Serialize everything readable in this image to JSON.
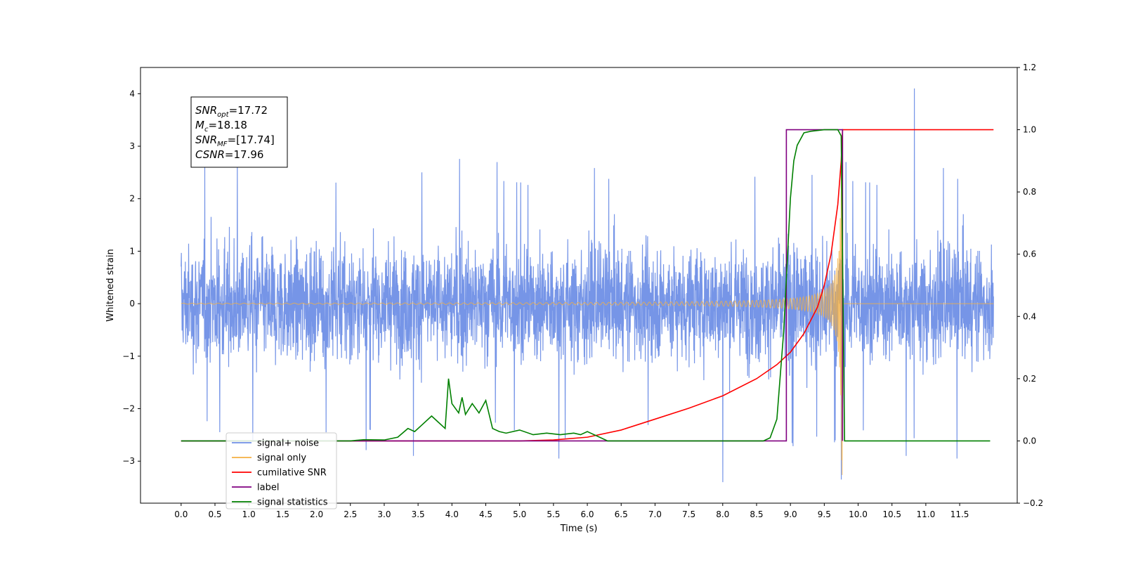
{
  "chart_data": {
    "type": "line",
    "xlabel": "Time (s)",
    "ylabel": "Whitened strain",
    "xlim": [
      -0.6,
      12.35
    ],
    "ylim": [
      -3.8,
      4.5
    ],
    "y2lim": [
      -0.2,
      1.2
    ],
    "grid": false,
    "x_ticks": [
      "0.0",
      "0.5",
      "1.0",
      "1.5",
      "2.0",
      "2.5",
      "3.0",
      "3.5",
      "4.0",
      "4.5",
      "5.0",
      "5.5",
      "6.0",
      "6.5",
      "7.0",
      "7.5",
      "8.0",
      "8.5",
      "9.0",
      "9.5",
      "10.0",
      "10.5",
      "11.0",
      "11.5"
    ],
    "y_ticks": [
      "−3",
      "−2",
      "−1",
      "0",
      "1",
      "2",
      "3",
      "4"
    ],
    "y2_ticks": [
      "−0.2",
      "0.0",
      "0.2",
      "0.4",
      "0.6",
      "0.8",
      "1.0",
      "1.2"
    ],
    "legend_position": "lower-left",
    "annotation": {
      "lines": [
        {
          "base": "SNR",
          "sub": "opt",
          "rest": "=17.72"
        },
        {
          "base": "M",
          "sub": "c",
          "rest": "=18.18"
        },
        {
          "base": "SNR",
          "sub": "MF",
          "rest": "=[17.74]"
        },
        {
          "base": "CSNR",
          "sub": "",
          "rest": "=17.96"
        }
      ]
    },
    "series": [
      {
        "name": "signal+ noise",
        "axis": "left",
        "color": "#6f8fe6",
        "x_range": [
          0,
          12
        ],
        "envelope": {
          "typical_abs": 1.8,
          "peak_max": 4.1,
          "peak_min": -3.4
        }
      },
      {
        "name": "signal only",
        "axis": "left",
        "color": "#f5b042",
        "x_range": [
          0,
          12
        ],
        "chirp_end": 9.77,
        "peak_amplitude": 3.3
      },
      {
        "name": "cumilative SNR",
        "axis": "right",
        "color": "#ff0000",
        "x": [
          0,
          5.0,
          5.5,
          6.0,
          6.5,
          7.0,
          7.5,
          8.0,
          8.5,
          8.8,
          9.0,
          9.2,
          9.4,
          9.5,
          9.6,
          9.7,
          9.75,
          9.77,
          12.0
        ],
        "y": [
          0,
          0,
          0.003,
          0.012,
          0.035,
          0.07,
          0.105,
          0.145,
          0.2,
          0.245,
          0.285,
          0.345,
          0.43,
          0.5,
          0.6,
          0.76,
          0.9,
          1.0,
          1.0
        ]
      },
      {
        "name": "label",
        "axis": "right",
        "color": "#800080",
        "x": [
          0,
          8.94,
          8.94,
          9.77,
          9.77,
          9.77
        ],
        "y": [
          0,
          0,
          1.0,
          1.0,
          0,
          0
        ]
      },
      {
        "name": "signal statistics",
        "axis": "right",
        "color": "#008000",
        "x": [
          0,
          2.5,
          2.7,
          3.0,
          3.2,
          3.35,
          3.45,
          3.55,
          3.7,
          3.8,
          3.9,
          3.95,
          4.0,
          4.1,
          4.15,
          4.2,
          4.3,
          4.4,
          4.5,
          4.6,
          4.7,
          4.8,
          5.0,
          5.2,
          5.4,
          5.6,
          5.8,
          5.9,
          6.0,
          6.1,
          6.2,
          6.3,
          6.5,
          8.6,
          8.7,
          8.8,
          8.9,
          9.0,
          9.05,
          9.1,
          9.2,
          9.3,
          9.5,
          9.7,
          9.75,
          9.8,
          9.85,
          9.95
        ],
        "y": [
          0,
          0,
          0.004,
          0.003,
          0.012,
          0.04,
          0.03,
          0.05,
          0.08,
          0.06,
          0.04,
          0.2,
          0.12,
          0.09,
          0.14,
          0.085,
          0.12,
          0.09,
          0.13,
          0.04,
          0.03,
          0.025,
          0.035,
          0.02,
          0.025,
          0.02,
          0.025,
          0.02,
          0.03,
          0.02,
          0.01,
          0,
          0,
          0,
          0.01,
          0.07,
          0.35,
          0.78,
          0.9,
          0.95,
          0.99,
          0.995,
          1.0,
          1.0,
          0.98,
          0.0,
          0,
          0
        ],
        "x_end": 11.95
      }
    ]
  }
}
